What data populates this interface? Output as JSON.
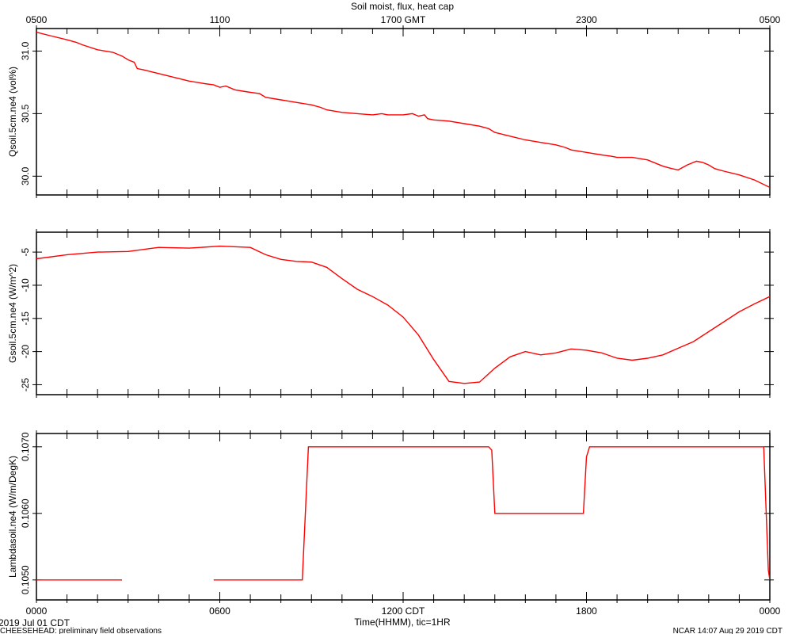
{
  "title": "Soil moist, flux, heat cap",
  "colors": {
    "series": "#ff0000",
    "axis": "#000000",
    "background": "#ffffff"
  },
  "top_axis": {
    "label": "1700 GMT",
    "ticks": [
      {
        "x": 0,
        "label": "0500"
      },
      {
        "x": 6,
        "label": "1100"
      },
      {
        "x": 12,
        "label": "1700 GMT"
      },
      {
        "x": 18,
        "label": "2300"
      },
      {
        "x": 24,
        "label": "0500"
      }
    ]
  },
  "bottom_axis": {
    "xlabel": "Time(HHMM), tic=1HR",
    "ticks": [
      {
        "x": 0,
        "label": "0000"
      },
      {
        "x": 6,
        "label": "0600"
      },
      {
        "x": 12,
        "label": "1200 CDT"
      },
      {
        "x": 18,
        "label": "1800"
      },
      {
        "x": 24,
        "label": "0000"
      }
    ]
  },
  "footer": {
    "date": "2019 Jul 01 CDT",
    "project": "CHEESEHEAD: preliminary field observations",
    "credit": "NCAR 14:07 Aug 29 2019 CDT"
  },
  "chart_data": [
    {
      "type": "line",
      "title": "Soil moist, flux, heat cap",
      "ylabel": "Qsoil.5cm.ne4 (vol%)",
      "xlim": [
        0,
        24
      ],
      "ylim": [
        29.85,
        31.18
      ],
      "yticks": [
        {
          "value": 30.0,
          "label": "30.0"
        },
        {
          "value": 30.5,
          "label": "30.5"
        },
        {
          "value": 31.0,
          "label": "31.0"
        }
      ],
      "series": [
        {
          "segments": [
            [
              [
                0,
                31.15
              ],
              [
                0.5,
                31.12
              ],
              [
                1,
                31.09
              ],
              [
                1.3,
                31.07
              ],
              [
                1.5,
                31.05
              ],
              [
                2,
                31.01
              ],
              [
                2.5,
                30.99
              ],
              [
                2.8,
                30.96
              ],
              [
                3,
                30.93
              ],
              [
                3.2,
                30.91
              ],
              [
                3.3,
                30.86
              ],
              [
                3.5,
                30.85
              ],
              [
                4,
                30.82
              ],
              [
                4.5,
                30.79
              ],
              [
                5,
                30.76
              ],
              [
                5.5,
                30.74
              ],
              [
                5.8,
                30.73
              ],
              [
                6,
                30.71
              ],
              [
                6.2,
                30.72
              ],
              [
                6.5,
                30.69
              ],
              [
                7,
                30.67
              ],
              [
                7.3,
                30.66
              ],
              [
                7.5,
                30.63
              ],
              [
                8,
                30.61
              ],
              [
                8.5,
                30.59
              ],
              [
                9,
                30.57
              ],
              [
                9.3,
                30.55
              ],
              [
                9.5,
                30.53
              ],
              [
                10,
                30.51
              ],
              [
                10.5,
                30.5
              ],
              [
                11,
                30.49
              ],
              [
                11.3,
                30.5
              ],
              [
                11.5,
                30.49
              ],
              [
                12,
                30.49
              ],
              [
                12.3,
                30.5
              ],
              [
                12.5,
                30.48
              ],
              [
                12.7,
                30.49
              ],
              [
                12.8,
                30.46
              ],
              [
                13,
                30.45
              ],
              [
                13.5,
                30.44
              ],
              [
                14,
                30.42
              ],
              [
                14.5,
                30.4
              ],
              [
                14.8,
                30.38
              ],
              [
                15,
                30.35
              ],
              [
                15.5,
                30.32
              ],
              [
                16,
                30.29
              ],
              [
                16.5,
                30.27
              ],
              [
                17,
                30.25
              ],
              [
                17.3,
                30.23
              ],
              [
                17.5,
                30.21
              ],
              [
                18,
                30.19
              ],
              [
                18.5,
                30.17
              ],
              [
                18.8,
                30.16
              ],
              [
                19,
                30.15
              ],
              [
                19.5,
                30.15
              ],
              [
                20,
                30.13
              ],
              [
                20.5,
                30.08
              ],
              [
                20.8,
                30.06
              ],
              [
                21,
                30.05
              ],
              [
                21.3,
                30.09
              ],
              [
                21.6,
                30.12
              ],
              [
                21.8,
                30.11
              ],
              [
                22.0,
                30.09
              ],
              [
                22.2,
                30.06
              ],
              [
                22.5,
                30.04
              ],
              [
                23,
                30.01
              ],
              [
                23.5,
                29.97
              ],
              [
                24,
                29.91
              ],
              [
                24.5,
                29.9
              ],
              [
                25,
                29.88
              ]
            ]
          ]
        }
      ]
    },
    {
      "type": "line",
      "ylabel": "Gsoil.5cm.ne4 (W/m^2)",
      "xlim": [
        0,
        24
      ],
      "ylim": [
        -26.5,
        -2
      ],
      "yticks": [
        {
          "value": -25,
          "label": "-25"
        },
        {
          "value": -20,
          "label": "-20"
        },
        {
          "value": -15,
          "label": "-15"
        },
        {
          "value": -10,
          "label": "-10"
        },
        {
          "value": -5,
          "label": "-5"
        }
      ],
      "series": [
        {
          "segments": [
            [
              [
                0,
                -6.0
              ],
              [
                1,
                -5.4
              ],
              [
                2,
                -5.0
              ],
              [
                3,
                -4.9
              ],
              [
                4,
                -4.3
              ],
              [
                5,
                -4.4
              ],
              [
                6,
                -4.1
              ],
              [
                7,
                -4.3
              ],
              [
                7.5,
                -5.4
              ],
              [
                8,
                -6.1
              ],
              [
                8.5,
                -6.4
              ],
              [
                9,
                -6.5
              ],
              [
                9.5,
                -7.3
              ],
              [
                10,
                -9.0
              ],
              [
                10.5,
                -10.6
              ],
              [
                11,
                -11.7
              ],
              [
                11.5,
                -13.0
              ],
              [
                12,
                -14.8
              ],
              [
                12.5,
                -17.5
              ],
              [
                13,
                -21.2
              ],
              [
                13.5,
                -24.5
              ],
              [
                14,
                -24.8
              ],
              [
                14.5,
                -24.6
              ],
              [
                15,
                -22.5
              ],
              [
                15.5,
                -20.8
              ],
              [
                16,
                -20.0
              ],
              [
                16.5,
                -20.5
              ],
              [
                17,
                -20.2
              ],
              [
                17.5,
                -19.6
              ],
              [
                18,
                -19.8
              ],
              [
                18.5,
                -20.2
              ],
              [
                19,
                -21.0
              ],
              [
                19.5,
                -21.3
              ],
              [
                20,
                -21.0
              ],
              [
                20.5,
                -20.5
              ],
              [
                21,
                -19.5
              ],
              [
                21.5,
                -18.5
              ],
              [
                22,
                -17.0
              ],
              [
                22.5,
                -15.5
              ],
              [
                23,
                -14.0
              ],
              [
                23.5,
                -12.8
              ],
              [
                24,
                -11.7
              ],
              [
                24.5,
                -10.8
              ],
              [
                25,
                -9.8
              ]
            ]
          ]
        }
      ]
    },
    {
      "type": "line",
      "ylabel": "Lambdasoil.ne4 (W/m/DegK)",
      "xlim": [
        0,
        24
      ],
      "ylim": [
        0.1047,
        0.1072
      ],
      "yticks": [
        {
          "value": 0.105,
          "label": "0.1050"
        },
        {
          "value": 0.106,
          "label": "0.1060"
        },
        {
          "value": 0.107,
          "label": "0.1070"
        }
      ],
      "series": [
        {
          "segments": [
            [
              [
                0,
                0.105
              ],
              [
                2.8,
                0.105
              ]
            ],
            [
              [
                5.8,
                0.105
              ],
              [
                8.7,
                0.105
              ],
              [
                8.9,
                0.107
              ],
              [
                14.8,
                0.107
              ],
              [
                14.9,
                0.10695
              ],
              [
                15.0,
                0.106
              ],
              [
                17.9,
                0.106
              ],
              [
                18.0,
                0.10685
              ],
              [
                18.1,
                0.107
              ],
              [
                23.8,
                0.107
              ],
              [
                23.95,
                0.10515
              ],
              [
                24.0,
                0.105
              ]
            ]
          ]
        }
      ]
    }
  ]
}
